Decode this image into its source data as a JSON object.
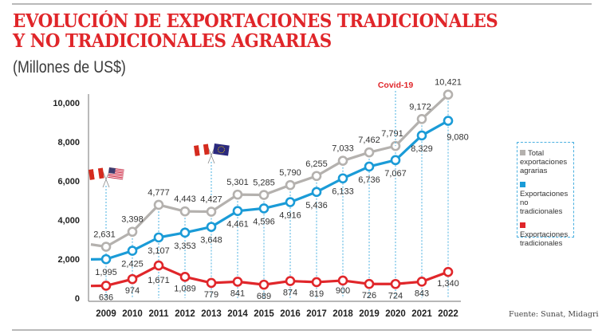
{
  "header": {
    "title_line1": "EVOLUCIÓN DE EXPORTACIONES TRADICIONALES",
    "title_line2": "Y NO TRADICIONALES AGRARIAS",
    "subtitle": "(Millones de US$)"
  },
  "source": "Fuente: Sunat, Midagri",
  "annotations": {
    "covid": {
      "label": "Covid-19",
      "year": "2020",
      "color": "#e0262a"
    },
    "flags": [
      {
        "name": "peru-usa-flags-icon",
        "year": "2009",
        "description": "Peru and USA crossed flags"
      },
      {
        "name": "peru-eu-flags-icon",
        "year": "2013",
        "description": "Peru and EU crossed flags"
      }
    ]
  },
  "legend": [
    {
      "label": "Total exportaciones agrarias",
      "color": "#b4b1ae"
    },
    {
      "label": "Exportaciones no tradicionales",
      "color": "#1a9bd7"
    },
    {
      "label": "Exportaciones tradicionales",
      "color": "#e0262a"
    }
  ],
  "chart_data": {
    "type": "line",
    "title": "EVOLUCIÓN DE EXPORTACIONES TRADICIONALES Y NO TRADICIONALES AGRARIAS",
    "subtitle": "(Millones de US$)",
    "xlabel": "",
    "ylabel": "",
    "x": [
      "2009",
      "2010",
      "2011",
      "2012",
      "2013",
      "2014",
      "2015",
      "2016",
      "2017",
      "2018",
      "2019",
      "2020",
      "2021",
      "2022"
    ],
    "yticks": [
      0,
      2000,
      4000,
      6000,
      8000,
      10000
    ],
    "ytick_labels": [
      "0",
      "2,000",
      "4,000",
      "6,000",
      "8,000",
      "10,000"
    ],
    "ylim": [
      0,
      10000
    ],
    "grid": false,
    "legend_position": "right",
    "series": [
      {
        "name": "Total exportaciones agrarias",
        "color": "#b4b1ae",
        "values": [
          2631,
          3398,
          4777,
          4443,
          4427,
          5301,
          5285,
          5790,
          6255,
          7033,
          7462,
          7791,
          9172,
          10421
        ],
        "labels": [
          "2,631",
          "3,398",
          "4,777",
          "4,443",
          "4,427",
          "5,301",
          "5,285",
          "5,790",
          "6,255",
          "7,033",
          "7,462",
          "7,791",
          "9,172",
          "10,421"
        ]
      },
      {
        "name": "Exportaciones no tradicionales",
        "color": "#1a9bd7",
        "values": [
          1995,
          2425,
          3107,
          3353,
          3648,
          4461,
          4596,
          4916,
          5436,
          6133,
          6736,
          7067,
          8329,
          9080
        ],
        "labels": [
          "1,995",
          "2,425",
          "3,107",
          "3,353",
          "3,648",
          "4,461",
          "4,596",
          "4,916",
          "5,436",
          "6,133",
          "6,736",
          "7,067",
          "8,329",
          "9,080"
        ]
      },
      {
        "name": "Exportaciones tradicionales",
        "color": "#e0262a",
        "values": [
          636,
          974,
          1671,
          1089,
          779,
          841,
          689,
          874,
          819,
          900,
          726,
          724,
          843,
          1340
        ],
        "labels": [
          "636",
          "974",
          "1,671",
          "1,089",
          "779",
          "841",
          "689",
          "874",
          "819",
          "900",
          "726",
          "724",
          "843",
          "1,340"
        ]
      }
    ]
  }
}
